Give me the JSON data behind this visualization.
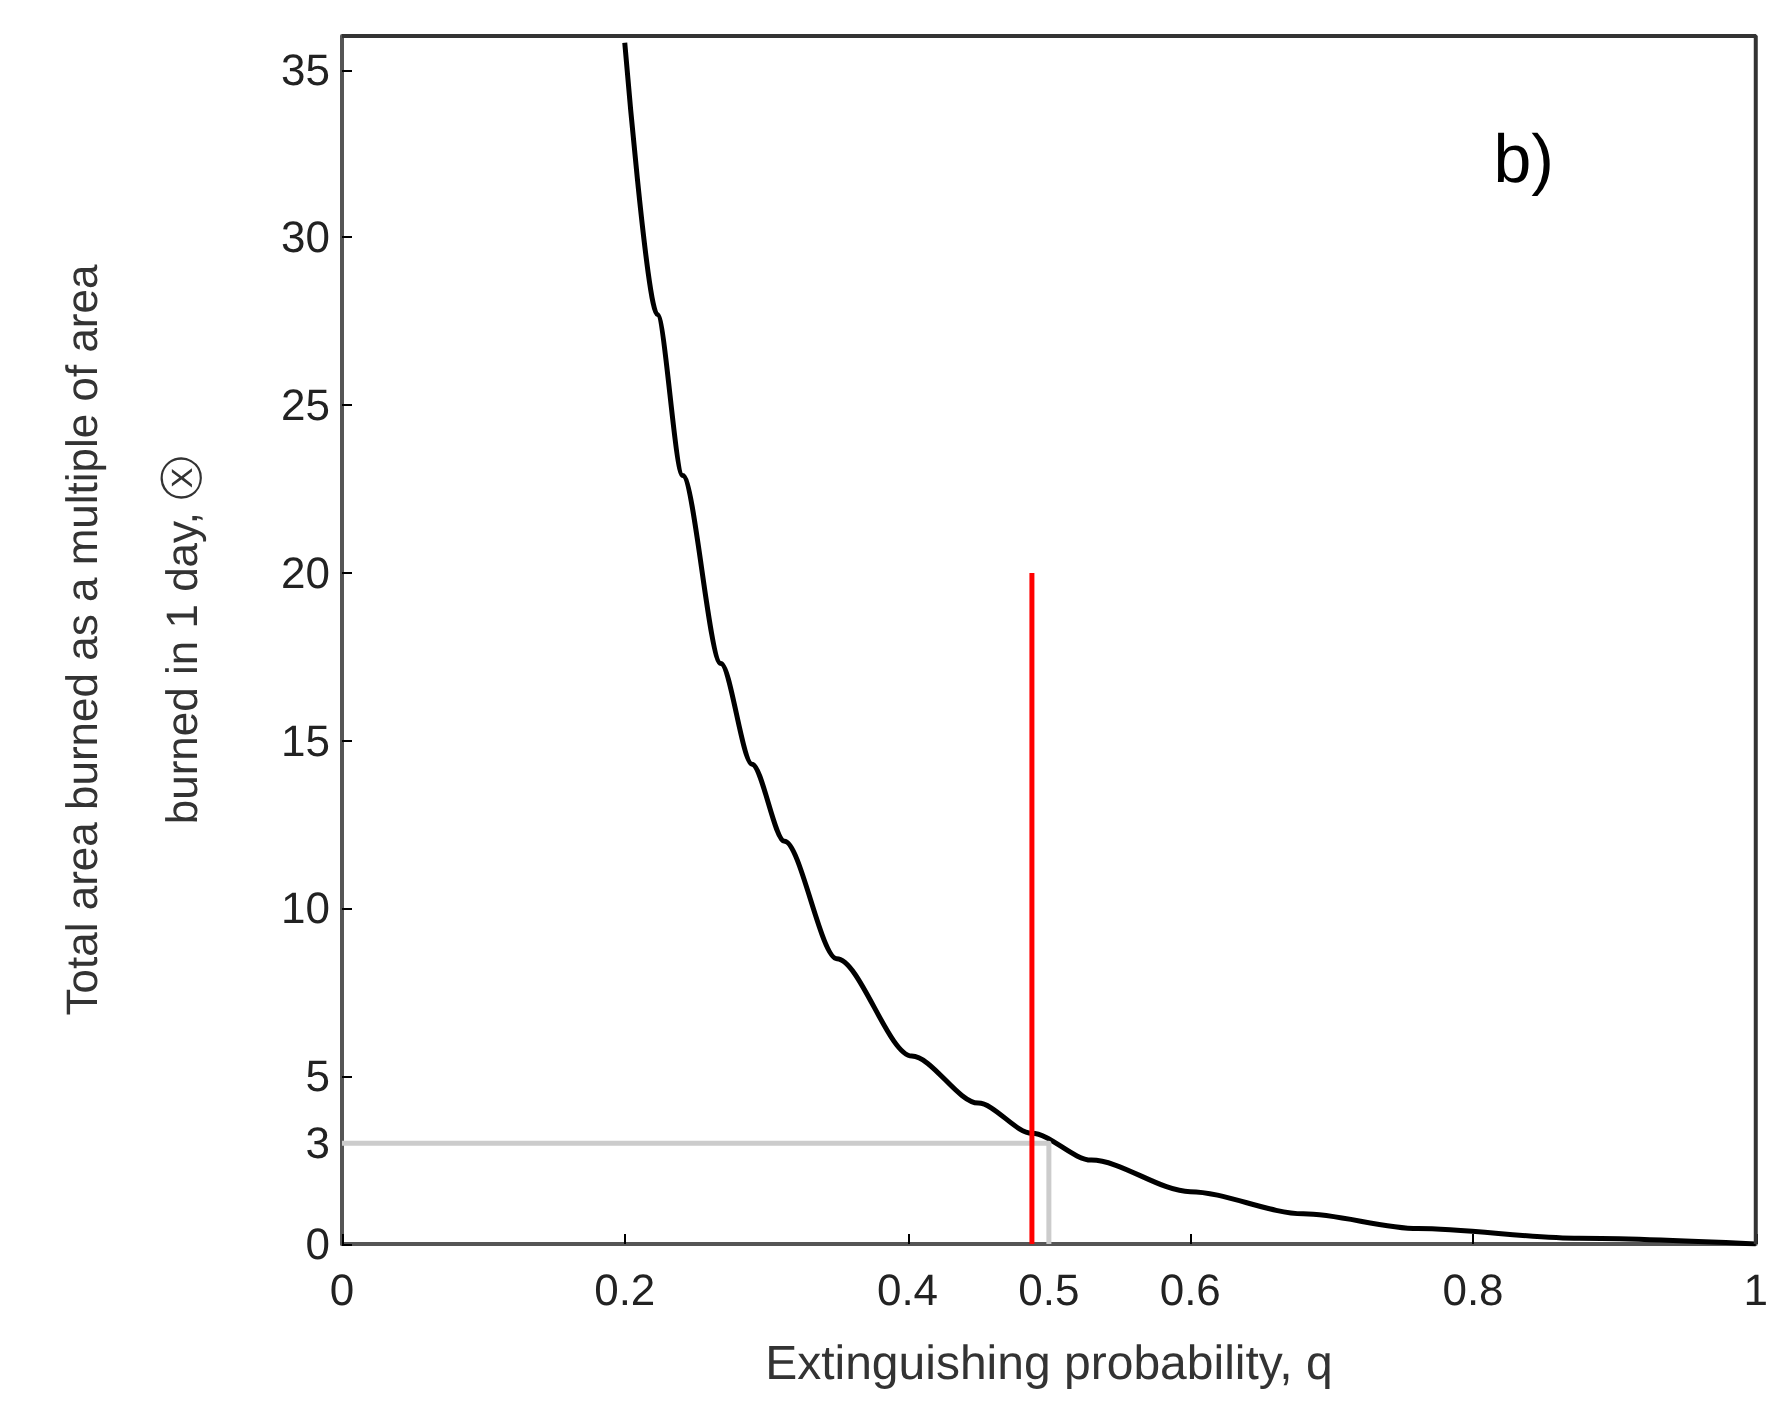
{
  "chart_data": {
    "type": "line",
    "xlabel": "Extinguishing probability, q",
    "ylabel": "Total area burned as a multiple of area\nburned in 1 day, ⓧ",
    "annotations": [
      "b)"
    ],
    "series": [
      {
        "color": "#000000",
        "x": [
          0.2,
          0.223,
          0.241,
          0.268,
          0.29,
          0.313,
          0.35,
          0.403,
          0.45,
          0.488,
          0.53,
          0.6,
          0.68,
          0.761,
          0.875,
          1
        ],
        "values": [
          35.8,
          27.7,
          22.9,
          17.3,
          14.3,
          12.0,
          8.5,
          5.6,
          4.2,
          3.3,
          2.5,
          1.56,
          0.9,
          0.46,
          0.17,
          0
        ]
      },
      {
        "color": "#cccccc",
        "x": [
          0,
          0.5,
          0.5
        ],
        "values": [
          3,
          3,
          0
        ]
      },
      {
        "color": "#ff0000",
        "x": [
          0.488,
          0.488
        ],
        "values": [
          0,
          20
        ]
      }
    ],
    "xlim": [
      0,
      1
    ],
    "xticks": [
      0,
      0.2,
      0.4,
      0.5,
      0.6,
      0.8,
      1
    ],
    "ylim": [
      0,
      36
    ],
    "yticks": [
      0,
      3,
      5,
      10,
      15,
      20,
      25,
      30,
      35
    ],
    "grid": false,
    "marker": "none",
    "line_style": "solid"
  }
}
